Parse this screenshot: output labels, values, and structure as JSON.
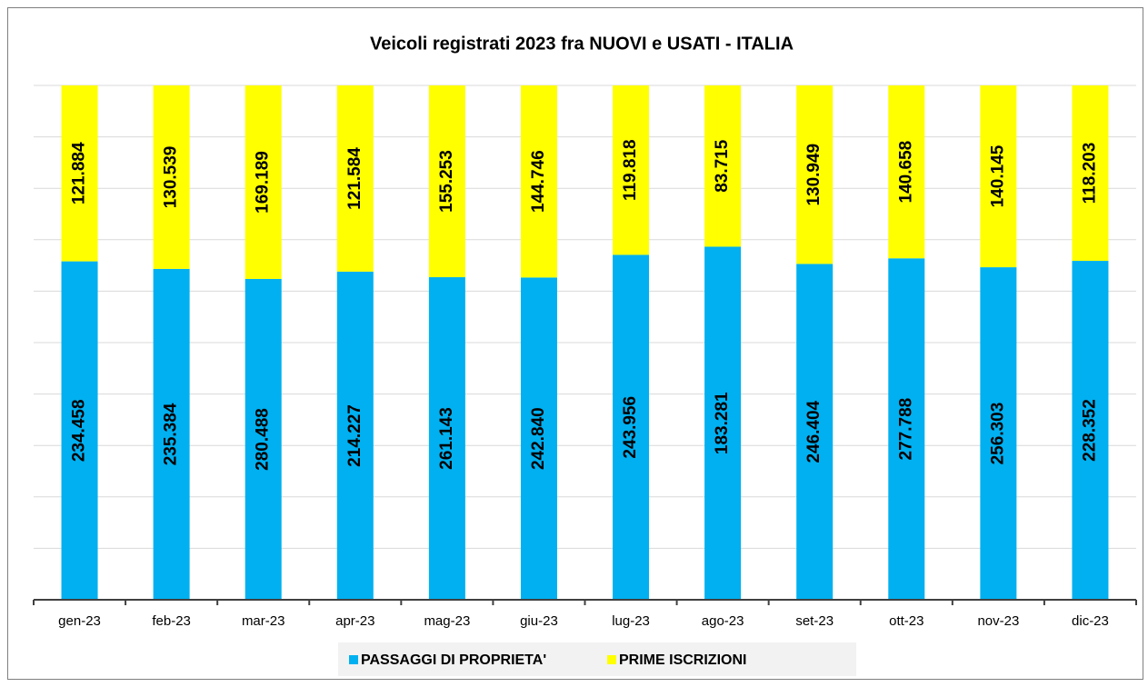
{
  "chart_data": {
    "type": "bar",
    "stack": "percent",
    "title": "Veicoli registrati 2023 fra NUOVI e USATI - ITALIA",
    "categories": [
      "gen-23",
      "feb-23",
      "mar-23",
      "apr-23",
      "mag-23",
      "giu-23",
      "lug-23",
      "ago-23",
      "set-23",
      "ott-23",
      "nov-23",
      "dic-23"
    ],
    "series": [
      {
        "name": "PASSAGGI DI PROPRIETA'",
        "color": "#00b0f0",
        "values": [
          234458,
          235384,
          280488,
          214227,
          261143,
          242840,
          243956,
          183281,
          246404,
          277788,
          256303,
          228352
        ],
        "value_labels": [
          "234.458",
          "235.384",
          "280.488",
          "214.227",
          "261.143",
          "242.840",
          "243.956",
          "183.281",
          "246.404",
          "277.788",
          "256.303",
          "228.352"
        ]
      },
      {
        "name": "PRIME ISCRIZIONI",
        "color": "#ffff00",
        "values": [
          121884,
          130539,
          169189,
          121584,
          155253,
          144746,
          119818,
          83715,
          130949,
          140658,
          140145,
          118203
        ],
        "value_labels": [
          "121.884",
          "130.539",
          "169.189",
          "121.584",
          "155.253",
          "144.746",
          "119.818",
          "83.715",
          "130.949",
          "140.658",
          "140.145",
          "118.203"
        ]
      }
    ],
    "ylim": [
      0,
      100
    ],
    "yticks": [
      0,
      10,
      20,
      30,
      40,
      50,
      60,
      70,
      80,
      90,
      100
    ],
    "grid": true,
    "legend": "bottom"
  }
}
